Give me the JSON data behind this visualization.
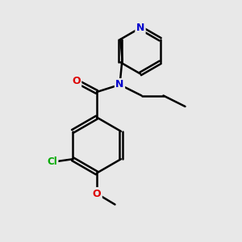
{
  "background_color": "#e8e8e8",
  "bond_color": "#000000",
  "bond_width": 1.8,
  "atom_colors": {
    "N": "#0000cc",
    "O": "#dd0000",
    "Cl": "#00aa00",
    "C": "#000000"
  },
  "font_size": 9,
  "figsize": [
    3.0,
    3.0
  ],
  "dpi": 100
}
